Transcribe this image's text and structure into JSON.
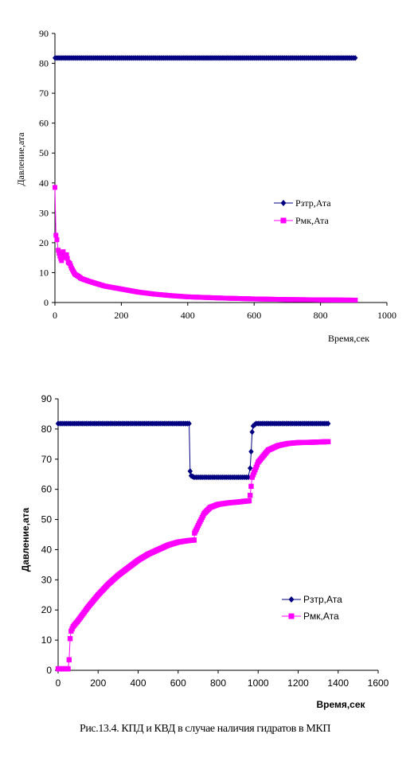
{
  "caption": "Рис.13.4.   КПД и КВД в случае наличия гидратов в МКП",
  "colors": {
    "series1": "#000080",
    "series2": "#FF00FF"
  },
  "chart_data": [
    {
      "type": "scatter",
      "title": "",
      "xlabel": "Время,сек",
      "ylabel": "Давление,ата",
      "xlim": [
        0,
        1000
      ],
      "ylim": [
        0,
        90
      ],
      "xticks": [
        "0",
        "200",
        "400",
        "600",
        "800",
        "1000"
      ],
      "yticks": [
        "0",
        "10",
        "20",
        "30",
        "40",
        "50",
        "60",
        "70",
        "80",
        "90"
      ],
      "grid": false,
      "legend": "right",
      "series": [
        {
          "name": "Рзтр,Ата",
          "marker": "diamond",
          "color": "#000080",
          "points": [
            [
              0,
              81.8
            ],
            [
              100,
              81.8
            ],
            [
              200,
              81.8
            ],
            [
              300,
              81.8
            ],
            [
              400,
              81.8
            ],
            [
              500,
              81.8
            ],
            [
              600,
              81.8
            ],
            [
              700,
              81.8
            ],
            [
              800,
              81.8
            ],
            [
              905,
              81.8
            ]
          ]
        },
        {
          "name": "Рмк,Ата",
          "marker": "square",
          "color": "#FF00FF",
          "points": [
            [
              0,
              38.5
            ],
            [
              3,
              22.5
            ],
            [
              6,
              21.0
            ],
            [
              10,
              17.5
            ],
            [
              15,
              15.5
            ],
            [
              20,
              14.0
            ],
            [
              25,
              17.0
            ],
            [
              30,
              15.0
            ],
            [
              35,
              16.0
            ],
            [
              40,
              13.5
            ],
            [
              45,
              13.0
            ],
            [
              50,
              11.5
            ],
            [
              55,
              10.5
            ],
            [
              60,
              9.5
            ],
            [
              70,
              8.8
            ],
            [
              80,
              8.0
            ],
            [
              100,
              7.2
            ],
            [
              120,
              6.5
            ],
            [
              150,
              5.5
            ],
            [
              200,
              4.5
            ],
            [
              250,
              3.5
            ],
            [
              300,
              2.8
            ],
            [
              350,
              2.3
            ],
            [
              400,
              1.9
            ],
            [
              500,
              1.5
            ],
            [
              600,
              1.2
            ],
            [
              700,
              1.0
            ],
            [
              800,
              0.9
            ],
            [
              905,
              0.8
            ]
          ]
        }
      ]
    },
    {
      "type": "scatter",
      "title": "",
      "xlabel": "Время,сек",
      "ylabel": "Давление,ата",
      "xlim": [
        0,
        1600
      ],
      "ylim": [
        0,
        90
      ],
      "xticks": [
        "0",
        "200",
        "400",
        "600",
        "800",
        "1000",
        "1200",
        "1400",
        "1600"
      ],
      "yticks": [
        "0",
        "10",
        "20",
        "30",
        "40",
        "50",
        "60",
        "70",
        "80",
        "90"
      ],
      "grid": false,
      "legend": "right",
      "series": [
        {
          "name": "Рзтр,Ата",
          "marker": "diamond",
          "color": "#000080",
          "points": [
            [
              0,
              81.8
            ],
            [
              100,
              81.8
            ],
            [
              200,
              81.8
            ],
            [
              300,
              81.8
            ],
            [
              400,
              81.8
            ],
            [
              500,
              81.8
            ],
            [
              600,
              81.8
            ],
            [
              655,
              81.8
            ],
            [
              660,
              66.0
            ],
            [
              665,
              64.5
            ],
            [
              680,
              64.0
            ],
            [
              800,
              64.0
            ],
            [
              950,
              64.0
            ],
            [
              960,
              67.0
            ],
            [
              965,
              72.5
            ],
            [
              970,
              79.0
            ],
            [
              975,
              81.0
            ],
            [
              990,
              81.8
            ],
            [
              1100,
              81.8
            ],
            [
              1200,
              81.8
            ],
            [
              1350,
              81.8
            ]
          ]
        },
        {
          "name": "Рмк,Ата",
          "marker": "square",
          "color": "#FF00FF",
          "points": [
            [
              0,
              0.5
            ],
            [
              30,
              0.5
            ],
            [
              50,
              0.5
            ],
            [
              55,
              3.5
            ],
            [
              60,
              10.5
            ],
            [
              65,
              13.0
            ],
            [
              75,
              14.5
            ],
            [
              100,
              16.5
            ],
            [
              150,
              21.0
            ],
            [
              200,
              25.0
            ],
            [
              250,
              28.5
            ],
            [
              300,
              31.5
            ],
            [
              350,
              34.0
            ],
            [
              400,
              36.5
            ],
            [
              450,
              38.5
            ],
            [
              500,
              40.0
            ],
            [
              550,
              41.5
            ],
            [
              600,
              42.5
            ],
            [
              650,
              43.0
            ],
            [
              680,
              43.2
            ],
            [
              682,
              45.5
            ],
            [
              700,
              48.0
            ],
            [
              730,
              52.0
            ],
            [
              760,
              54.0
            ],
            [
              800,
              55.0
            ],
            [
              850,
              55.5
            ],
            [
              900,
              55.8
            ],
            [
              955,
              56.2
            ],
            [
              960,
              58.0
            ],
            [
              970,
              64.0
            ],
            [
              1000,
              69.0
            ],
            [
              1050,
              73.0
            ],
            [
              1100,
              74.5
            ],
            [
              1150,
              75.2
            ],
            [
              1200,
              75.5
            ],
            [
              1270,
              75.6
            ],
            [
              1350,
              75.8
            ]
          ]
        }
      ]
    }
  ]
}
